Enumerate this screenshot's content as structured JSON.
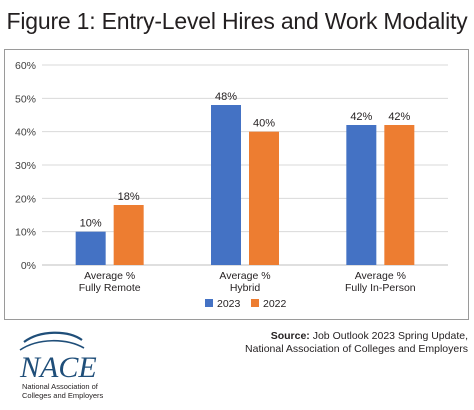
{
  "title": "Figure 1: Entry-Level Hires and Work Modality",
  "chart_data": {
    "type": "bar",
    "categories": [
      [
        "Average %",
        "Fully Remote"
      ],
      [
        "Average %",
        "Hybrid"
      ],
      [
        "Average %",
        "Fully In-Person"
      ]
    ],
    "series": [
      {
        "name": "2023",
        "values": [
          10,
          48,
          42
        ],
        "color": "#4472c4"
      },
      {
        "name": "2022",
        "values": [
          18,
          40,
          42
        ],
        "color": "#ed7d31"
      }
    ],
    "value_labels": [
      [
        "10%",
        "48%",
        "42%"
      ],
      [
        "18%",
        "40%",
        "42%"
      ]
    ],
    "y_ticks": [
      "0%",
      "10%",
      "20%",
      "30%",
      "40%",
      "50%",
      "60%"
    ],
    "ylim": [
      0,
      60
    ],
    "grid": true,
    "legend_position": "bottom"
  },
  "source": {
    "label": "Source:",
    "line1": "Job Outlook 2023 Spring Update,",
    "line2": "National Association of Colleges and Employers"
  },
  "logo": {
    "wordmark": "NACE",
    "org_line1": "National Association of",
    "org_line2": "Colleges and Employers",
    "color": "#1f4e79"
  }
}
